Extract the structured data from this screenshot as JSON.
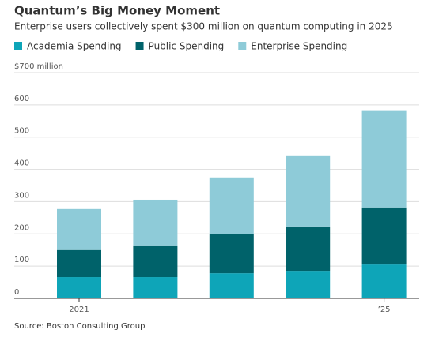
{
  "chart_data": {
    "type": "stacked_bar",
    "title": "Quantum’s Big Money Moment",
    "subtitle": "Enterprise users collectively spent $300 million on quantum computing in 2025",
    "source": "Source: Boston Consulting Group",
    "categories": [
      "2021",
      null,
      null,
      null,
      "’25"
    ],
    "series": [
      {
        "name": "Academia Spending",
        "color": "#0ea5b8",
        "values": [
          66,
          66,
          78,
          83,
          105
        ]
      },
      {
        "name": "Public Spending",
        "color": "#00626a",
        "values": [
          84,
          96,
          121,
          140,
          177
        ]
      },
      {
        "name": "Enterprise Spending",
        "color": "#8ecbd8",
        "values": [
          127,
          144,
          176,
          218,
          299
        ]
      }
    ],
    "ylim": [
      0,
      700
    ],
    "yticks": [
      0,
      100,
      200,
      300,
      400,
      500,
      600,
      {
        "value": 700,
        "label": "$700 million"
      }
    ],
    "grid": true
  }
}
